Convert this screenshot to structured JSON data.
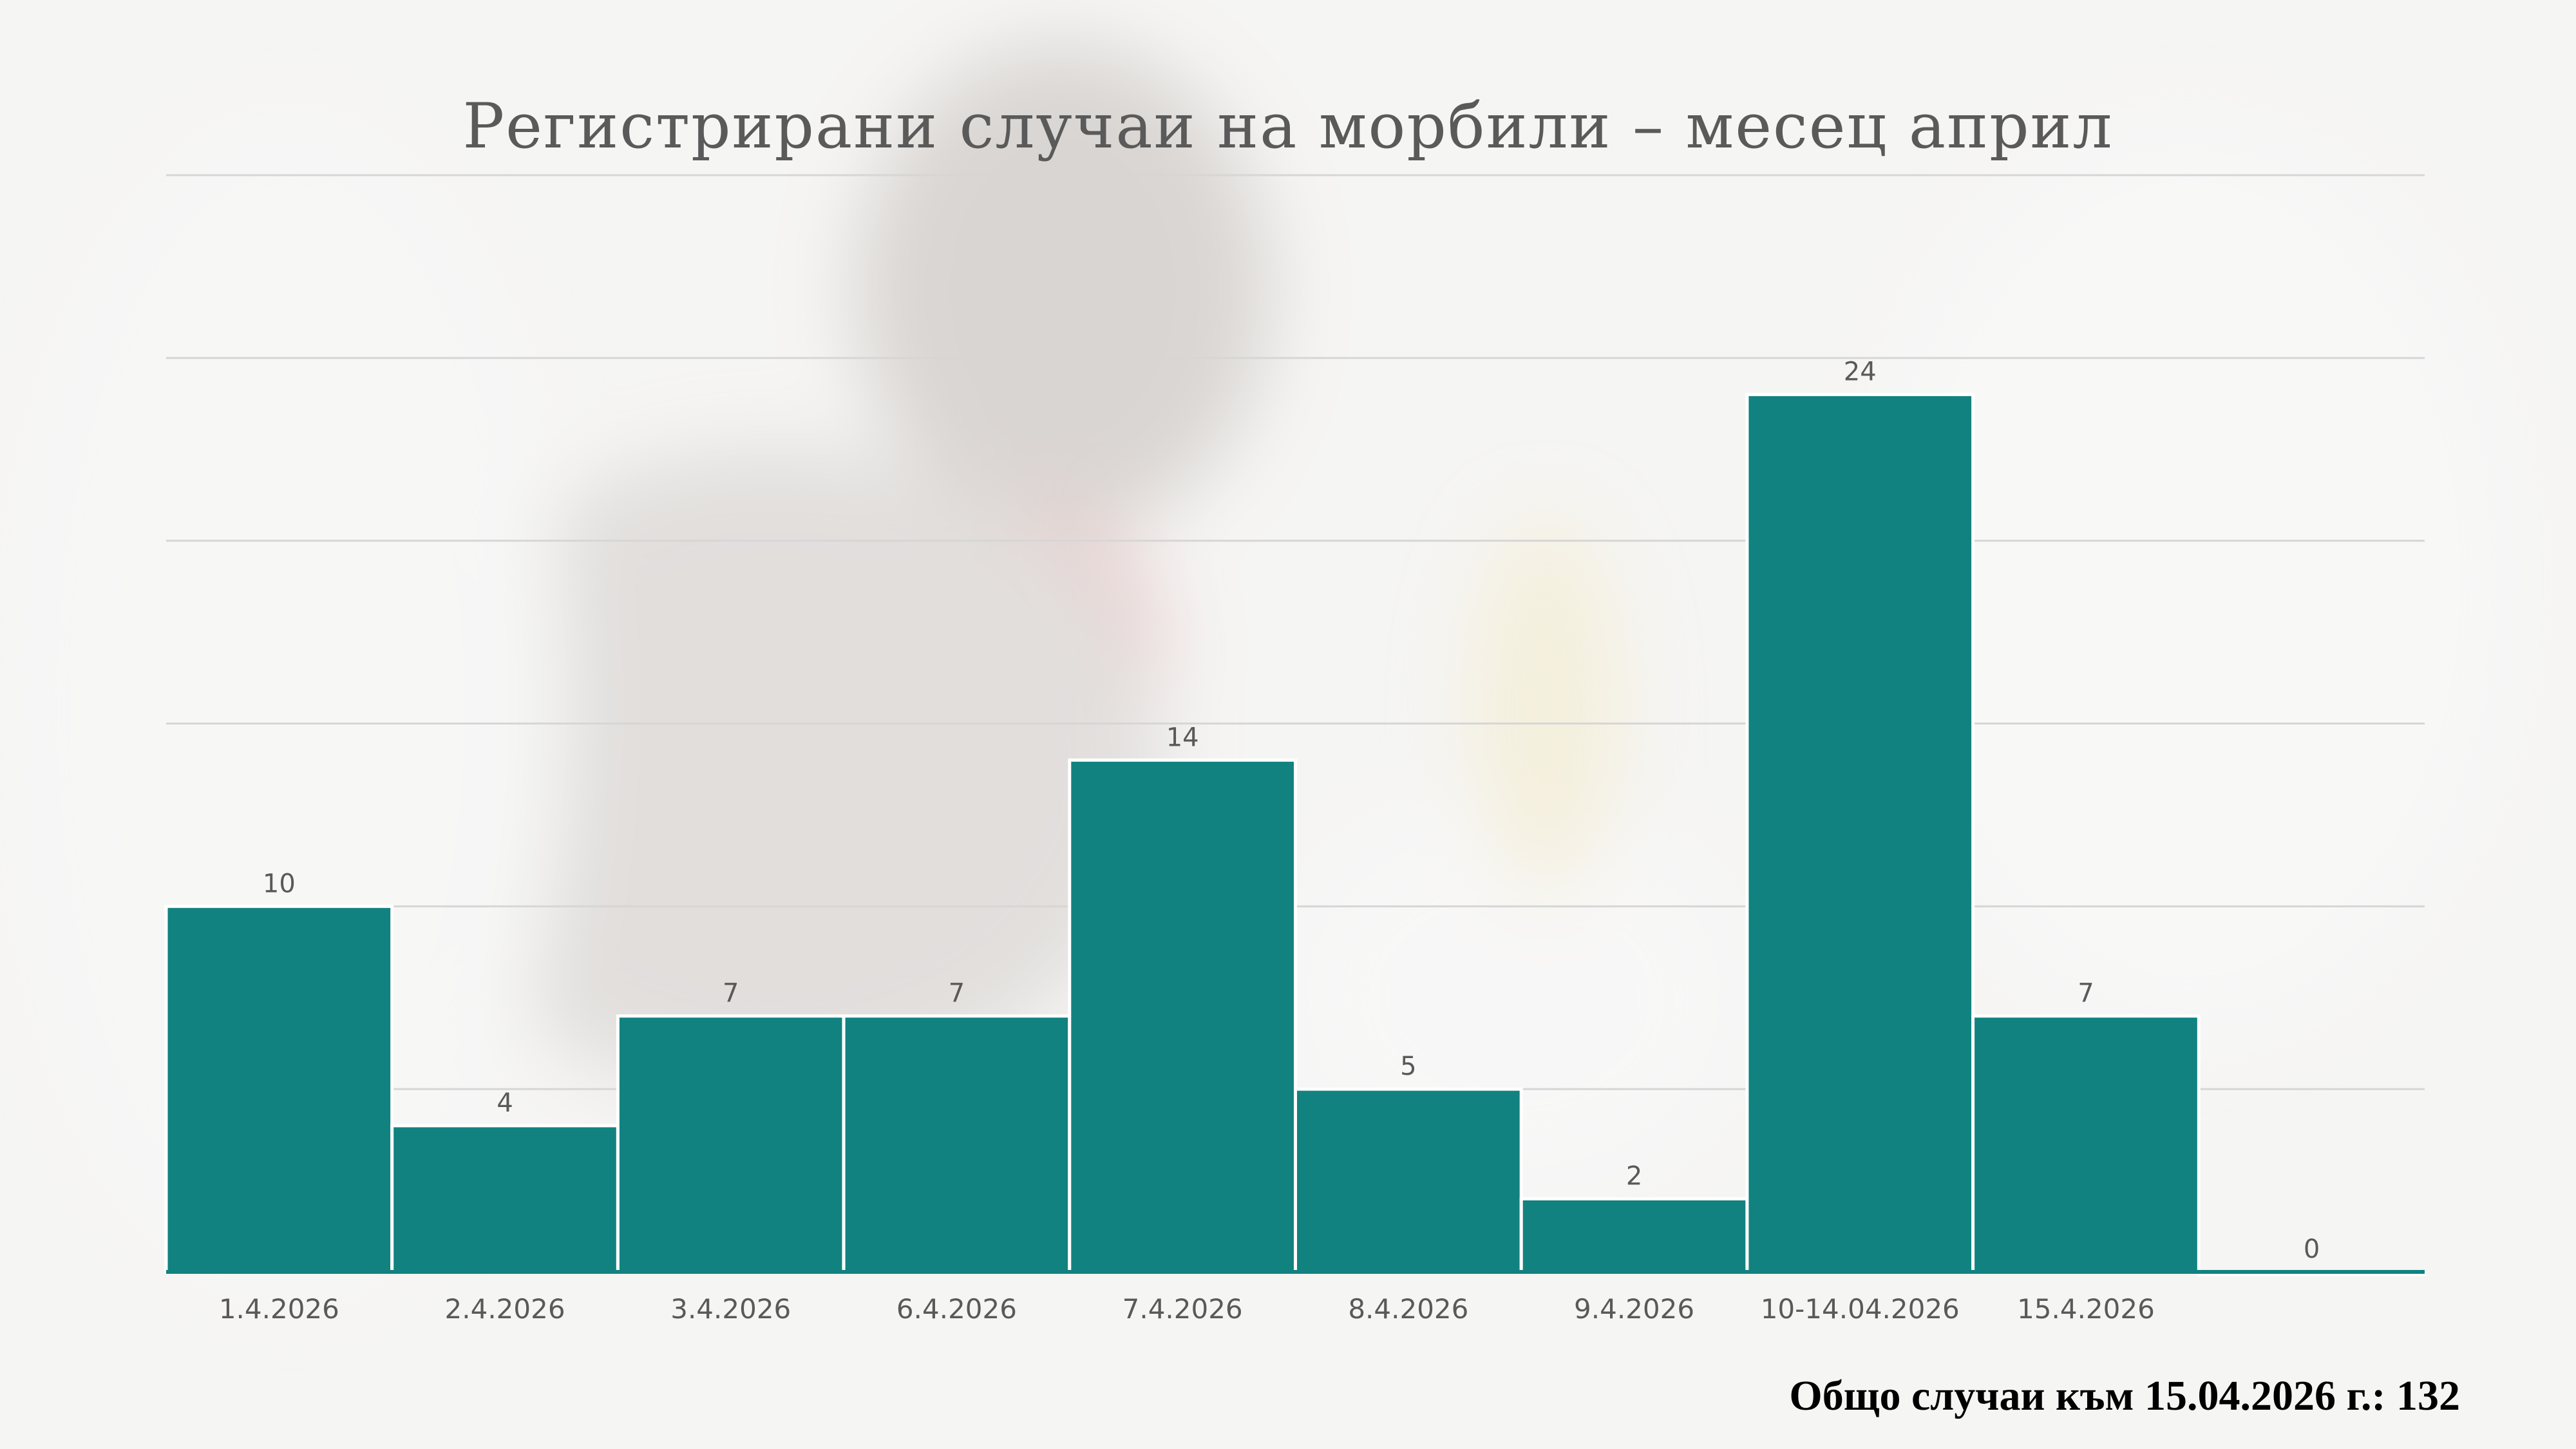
{
  "colors": {
    "bar": "#118280",
    "bar_edge": "#ffffff",
    "grid": "#d6d6d6",
    "text": "#595959",
    "title": "#5a5a5a"
  },
  "chart_data": {
    "type": "bar",
    "title": "Регистрирани случаи на морбили – месец април",
    "categories": [
      "1.4.2026",
      "2.4.2026",
      "3.4.2026",
      "6.4.2026",
      "7.4.2026",
      "8.4.2026",
      "9.4.2026",
      "10-14.04.2026",
      "15.4.2026",
      ""
    ],
    "values": [
      10,
      4,
      7,
      7,
      14,
      5,
      2,
      24,
      7,
      0
    ],
    "ylim": [
      0,
      30
    ],
    "grid": true,
    "legend": "none",
    "xlabel": "",
    "ylabel": ""
  },
  "footer": {
    "total_text": "Общо случаи към 15.04.2026 г.: 132"
  }
}
